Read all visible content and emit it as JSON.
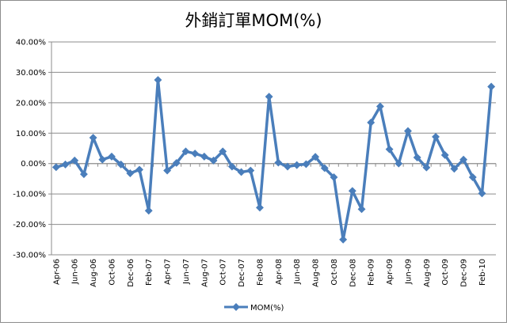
{
  "chart_data": {
    "type": "line",
    "title": "外銷訂單MOM(%)",
    "xlabel": "",
    "ylabel": "",
    "ylim": [
      -30,
      40
    ],
    "ytick_step": 10,
    "ytick_labels": [
      "40.00%",
      "30.00%",
      "20.00%",
      "10.00%",
      "0.00%",
      "-10.00%",
      "-20.00%",
      "-30.00%"
    ],
    "grid": true,
    "legend": "bottom",
    "color": "#4a7ebb",
    "categories": [
      "Apr-06",
      "May-06",
      "Jun-06",
      "Jul-06",
      "Aug-06",
      "Sep-06",
      "Oct-06",
      "Nov-06",
      "Dec-06",
      "Jan-07",
      "Feb-07",
      "Mar-07",
      "Apr-07",
      "May-07",
      "Jun-07",
      "Jul-07",
      "Aug-07",
      "Sep-07",
      "Oct-07",
      "Nov-07",
      "Dec-07",
      "Jan-08",
      "Feb-08",
      "Mar-08",
      "Apr-08",
      "May-08",
      "Jun-08",
      "Jul-08",
      "Aug-08",
      "Sep-08",
      "Oct-08",
      "Nov-08",
      "Dec-08",
      "Jan-09",
      "Feb-09",
      "Mar-09",
      "Apr-09",
      "May-09",
      "Jun-09",
      "Jul-09",
      "Aug-09",
      "Sep-09",
      "Oct-09",
      "Nov-09",
      "Dec-09",
      "Jan-10",
      "Feb-10",
      "Mar-10"
    ],
    "x_tick_labels": [
      "Apr-06",
      "Jun-06",
      "Aug-06",
      "Oct-06",
      "Dec-06",
      "Feb-07",
      "Apr-07",
      "Jun-07",
      "Aug-07",
      "Oct-07",
      "Dec-07",
      "Feb-08",
      "Apr-08",
      "Jun-08",
      "Aug-08",
      "Oct-08",
      "Dec-08",
      "Feb-09",
      "Apr-09",
      "Jun-09",
      "Aug-09",
      "Oct-09",
      "Dec-09",
      "Feb-10"
    ],
    "series": [
      {
        "name": "MOM(%)",
        "values": [
          -1.2,
          -0.3,
          1.0,
          -3.5,
          8.5,
          1.3,
          2.3,
          -0.3,
          -3.2,
          -2.0,
          -15.5,
          27.5,
          -2.3,
          0.2,
          4.0,
          3.3,
          2.3,
          1.0,
          4.0,
          -1.0,
          -2.8,
          -2.3,
          -14.5,
          22.0,
          0.3,
          -1.0,
          -0.5,
          -0.2,
          2.2,
          -1.5,
          -4.5,
          -25.0,
          -9.0,
          -15.0,
          13.5,
          18.8,
          4.7,
          0.0,
          10.7,
          2.0,
          -1.3,
          8.8,
          2.8,
          -1.7,
          1.3,
          -4.5,
          -9.8,
          25.3
        ]
      }
    ]
  }
}
